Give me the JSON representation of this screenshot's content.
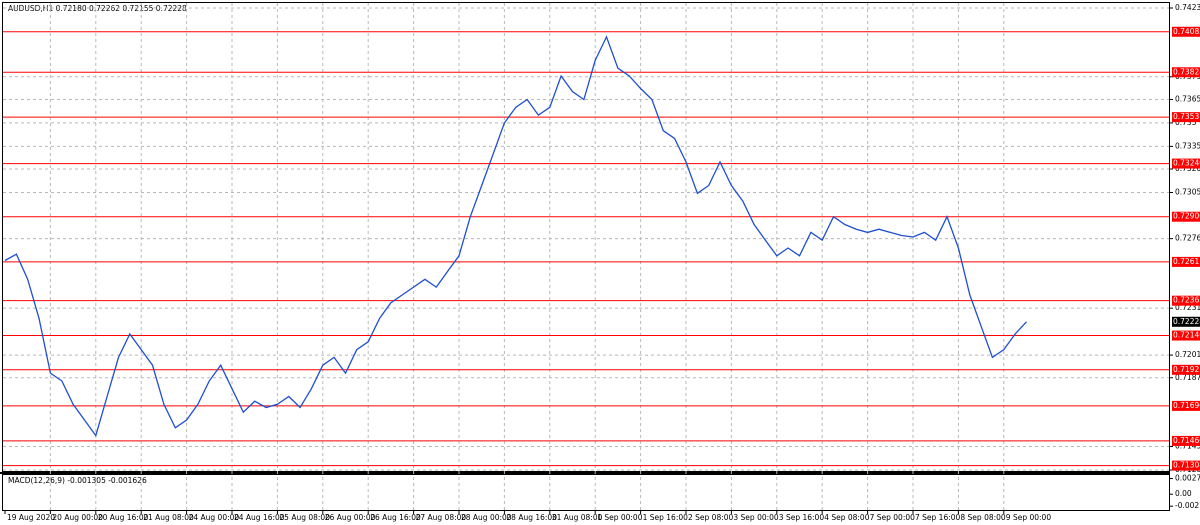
{
  "header": {
    "symbol_line": "AUDUSD,H1  0.72180 0.72262 0.72155 0.72228"
  },
  "chart_data": {
    "type": "line",
    "categories": [
      "19 Aug 2020",
      null,
      null,
      null,
      "20 Aug 00:00",
      null,
      null,
      null,
      "20 Aug 16:00",
      null,
      null,
      null,
      "21 Aug 08:00",
      null,
      null,
      null,
      "24 Aug 00:00",
      null,
      null,
      null,
      "24 Aug 16:00",
      null,
      null,
      null,
      "25 Aug 08:00",
      null,
      null,
      null,
      "26 Aug 00:00",
      null,
      null,
      null,
      "26 Aug 16:00",
      null,
      null,
      null,
      "27 Aug 08:00",
      null,
      null,
      null,
      "28 Aug 00:00",
      null,
      null,
      null,
      "28 Aug 16:00",
      null,
      null,
      null,
      "31 Aug 08:00",
      null,
      null,
      null,
      "1 Sep 00:00",
      null,
      null,
      null,
      "1 Sep 16:00",
      null,
      null,
      null,
      "2 Sep 08:00",
      null,
      null,
      null,
      "3 Sep 00:00",
      null,
      null,
      null,
      "3 Sep 16:00",
      null,
      null,
      null,
      "4 Sep 08:00",
      null,
      null,
      null,
      "7 Sep 00:00",
      null,
      null,
      null,
      "7 Sep 16:00",
      null,
      null,
      null,
      "8 Sep 08:00",
      null,
      null,
      null,
      "9 Sep 00:00",
      null,
      null
    ],
    "series": [
      {
        "color": "#1f4fd1",
        "values": [
          0.7262,
          0.7266,
          0.725,
          0.7225,
          0.719,
          0.7185,
          0.717,
          0.716,
          0.715,
          0.7175,
          0.72,
          0.7215,
          0.7205,
          0.7195,
          0.717,
          0.7155,
          0.716,
          0.717,
          0.7185,
          0.7195,
          0.718,
          0.7165,
          0.7172,
          0.7168,
          0.717,
          0.7175,
          0.7168,
          0.718,
          0.7195,
          0.72,
          0.719,
          0.7205,
          0.721,
          0.7225,
          0.7235,
          0.724,
          0.7245,
          0.725,
          0.7245,
          0.7255,
          0.7265,
          0.729,
          0.731,
          0.733,
          0.735,
          0.736,
          0.7365,
          0.7355,
          0.736,
          0.738,
          0.737,
          0.7365,
          0.739,
          0.7405,
          0.7385,
          0.738,
          0.7372,
          0.7365,
          0.7345,
          0.734,
          0.7325,
          0.7305,
          0.731,
          0.7325,
          0.731,
          0.73,
          0.7285,
          0.7275,
          0.7265,
          0.727,
          0.7265,
          0.728,
          0.7275,
          0.729,
          0.7285,
          0.7282,
          0.728,
          0.7282,
          0.728,
          0.7278,
          0.7277,
          0.728,
          0.7275,
          0.729,
          0.727,
          0.724,
          0.722,
          0.72,
          0.7205,
          0.7215,
          0.72228
        ]
      }
    ],
    "ylim": [
      0.7128,
      0.74235
    ],
    "yticks": [
      0.74235,
      0.73795,
      0.7365,
      0.735,
      0.7335,
      0.73205,
      0.73055,
      0.7276,
      0.72315,
      0.72015,
      0.7187,
      0.7143,
      0.7128
    ],
    "levels": {
      "color": "#ff0000",
      "values": [
        0.74083,
        0.73824,
        0.73537,
        0.7324,
        0.729,
        0.72611,
        0.72363,
        0.7214,
        0.71921,
        0.7169,
        0.71466,
        0.71308
      ],
      "value_labels": [
        "0.74083",
        "0.73824",
        "0.73537",
        "0.73240",
        "0.72900",
        "0.72611",
        "0.72363",
        "0.72140",
        "0.71921",
        "0.71690",
        "0.71466",
        "0.71308"
      ]
    },
    "current_price": 0.72228,
    "grid": true,
    "macd": {
      "label": "MACD(12,26,9) -0.001305 -0.001626",
      "ylim": [
        -0.0026,
        0.0032
      ],
      "yticks": [
        0.002754,
        {
          "value": 0,
          "label": "0.00"
        },
        {
          "value": -0.0021,
          "label": "-0.00210"
        }
      ]
    }
  }
}
